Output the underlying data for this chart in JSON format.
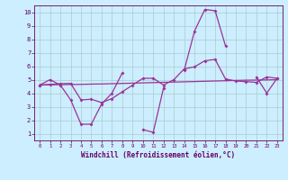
{
  "xlabel": "Windchill (Refroidissement éolien,°C)",
  "x_values": [
    0,
    1,
    2,
    3,
    4,
    5,
    6,
    7,
    8,
    9,
    10,
    11,
    12,
    13,
    14,
    15,
    16,
    17,
    18,
    19,
    20,
    21,
    22,
    23
  ],
  "line1_y": [
    4.6,
    5.0,
    4.6,
    3.5,
    1.7,
    1.7,
    3.2,
    4.0,
    5.5,
    null,
    1.3,
    1.1,
    4.4,
    null,
    5.7,
    8.6,
    10.2,
    10.1,
    7.5,
    null,
    null,
    5.2,
    4.0,
    5.1
  ],
  "line2_y": [
    4.6,
    4.65,
    4.7,
    4.72,
    3.5,
    3.55,
    3.3,
    3.6,
    4.1,
    4.6,
    5.1,
    5.1,
    4.6,
    5.0,
    5.8,
    5.95,
    6.4,
    6.5,
    5.05,
    4.9,
    4.85,
    4.8,
    5.2,
    5.1
  ],
  "line3_y": [
    4.6,
    4.62,
    4.63,
    4.64,
    4.65,
    4.67,
    4.68,
    4.7,
    4.72,
    4.74,
    4.76,
    4.78,
    4.8,
    4.82,
    4.84,
    4.86,
    4.88,
    4.9,
    4.92,
    4.94,
    4.96,
    4.97,
    4.98,
    5.0
  ],
  "line_color": "#993399",
  "bg_color": "#cceeff",
  "grid_color": "#aacccc",
  "axis_color": "#660066",
  "text_color": "#660066",
  "xlim": [
    -0.5,
    23.5
  ],
  "ylim": [
    0.5,
    10.5
  ],
  "yticks": [
    1,
    2,
    3,
    4,
    5,
    6,
    7,
    8,
    9,
    10
  ],
  "xticks": [
    0,
    1,
    2,
    3,
    4,
    5,
    6,
    7,
    8,
    9,
    10,
    11,
    12,
    13,
    14,
    15,
    16,
    17,
    18,
    19,
    20,
    21,
    22,
    23
  ]
}
